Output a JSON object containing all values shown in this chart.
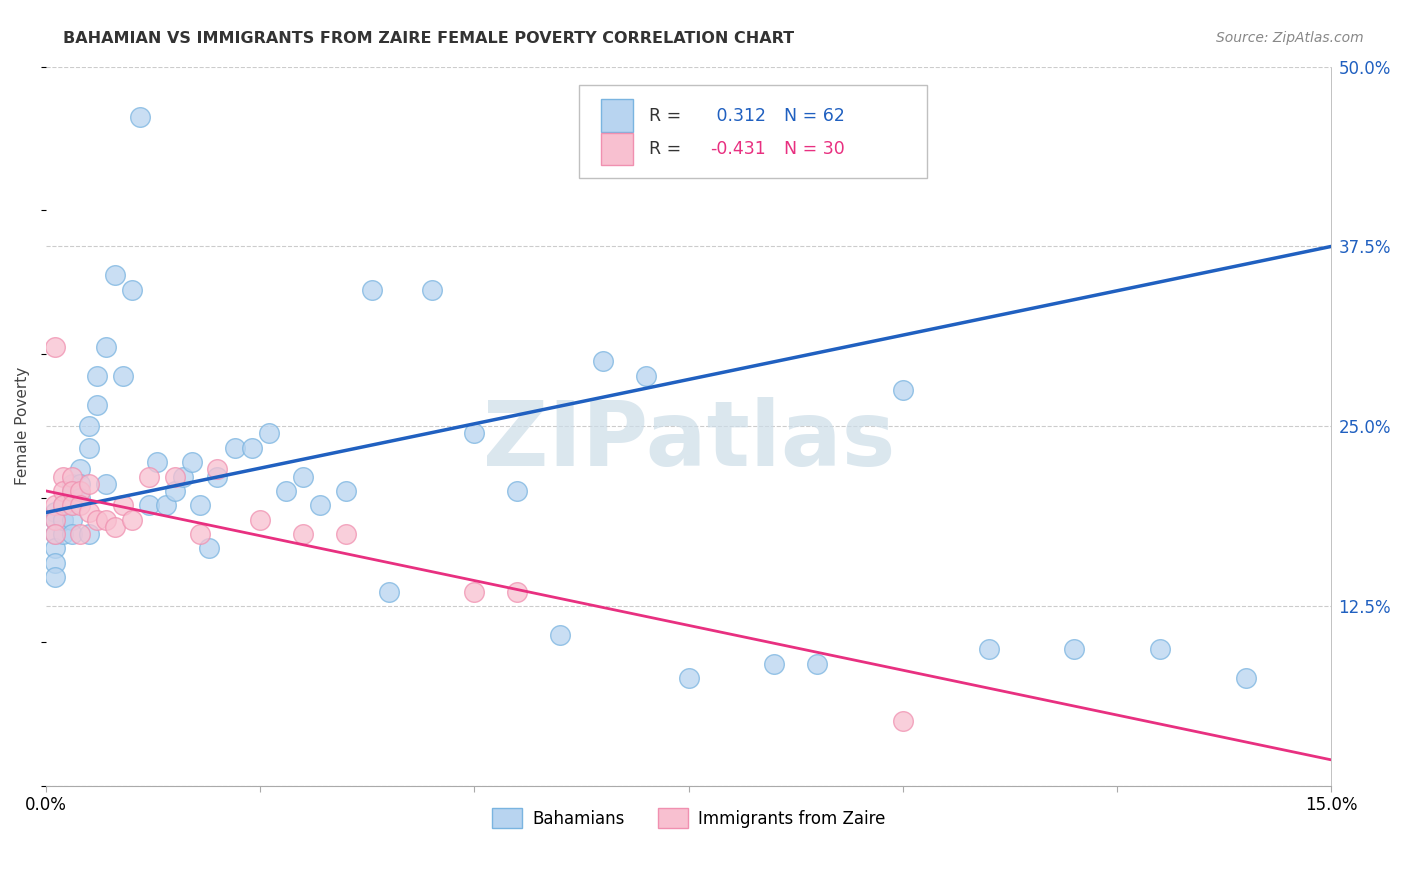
{
  "title": "BAHAMIAN VS IMMIGRANTS FROM ZAIRE FEMALE POVERTY CORRELATION CHART",
  "source": "Source: ZipAtlas.com",
  "ylabel": "Female Poverty",
  "xlim": [
    0.0,
    0.15
  ],
  "ylim": [
    0.0,
    0.5
  ],
  "blue_R": 0.312,
  "blue_N": 62,
  "pink_R": -0.431,
  "pink_N": 30,
  "blue_color": "#7ab4e0",
  "blue_fill": "#b8d4f0",
  "pink_color": "#f090b0",
  "pink_fill": "#f8c0d0",
  "blue_line_color": "#2060c0",
  "pink_line_color": "#e83080",
  "watermark": "ZIPatlas",
  "watermark_color": "#ccdde8",
  "legend_label_blue": "Bahamians",
  "legend_label_pink": "Immigrants from Zaire",
  "blue_line_y0": 0.19,
  "blue_line_y1": 0.375,
  "pink_line_y0": 0.205,
  "pink_line_y1": 0.018,
  "blue_x": [
    0.001,
    0.001,
    0.001,
    0.001,
    0.001,
    0.001,
    0.002,
    0.002,
    0.002,
    0.002,
    0.002,
    0.003,
    0.003,
    0.003,
    0.003,
    0.003,
    0.004,
    0.004,
    0.004,
    0.005,
    0.005,
    0.005,
    0.006,
    0.006,
    0.007,
    0.007,
    0.008,
    0.009,
    0.01,
    0.011,
    0.012,
    0.013,
    0.014,
    0.015,
    0.016,
    0.017,
    0.018,
    0.019,
    0.02,
    0.022,
    0.024,
    0.026,
    0.028,
    0.03,
    0.032,
    0.035,
    0.038,
    0.04,
    0.045,
    0.05,
    0.055,
    0.06,
    0.065,
    0.07,
    0.075,
    0.085,
    0.09,
    0.1,
    0.11,
    0.12,
    0.13,
    0.14
  ],
  "blue_y": [
    0.19,
    0.185,
    0.175,
    0.165,
    0.155,
    0.145,
    0.195,
    0.185,
    0.175,
    0.195,
    0.185,
    0.21,
    0.205,
    0.195,
    0.185,
    0.175,
    0.22,
    0.21,
    0.2,
    0.25,
    0.235,
    0.175,
    0.285,
    0.265,
    0.305,
    0.21,
    0.355,
    0.285,
    0.345,
    0.465,
    0.195,
    0.225,
    0.195,
    0.205,
    0.215,
    0.225,
    0.195,
    0.165,
    0.215,
    0.235,
    0.235,
    0.245,
    0.205,
    0.215,
    0.195,
    0.205,
    0.345,
    0.135,
    0.345,
    0.245,
    0.205,
    0.105,
    0.295,
    0.285,
    0.075,
    0.085,
    0.085,
    0.275,
    0.095,
    0.095,
    0.095,
    0.075
  ],
  "pink_x": [
    0.001,
    0.001,
    0.001,
    0.001,
    0.002,
    0.002,
    0.002,
    0.003,
    0.003,
    0.003,
    0.004,
    0.004,
    0.004,
    0.005,
    0.005,
    0.006,
    0.007,
    0.008,
    0.009,
    0.01,
    0.012,
    0.015,
    0.018,
    0.02,
    0.025,
    0.03,
    0.035,
    0.05,
    0.055,
    0.1
  ],
  "pink_y": [
    0.195,
    0.185,
    0.175,
    0.305,
    0.215,
    0.205,
    0.195,
    0.215,
    0.205,
    0.195,
    0.205,
    0.195,
    0.175,
    0.21,
    0.19,
    0.185,
    0.185,
    0.18,
    0.195,
    0.185,
    0.215,
    0.215,
    0.175,
    0.22,
    0.185,
    0.175,
    0.175,
    0.135,
    0.135,
    0.045
  ]
}
